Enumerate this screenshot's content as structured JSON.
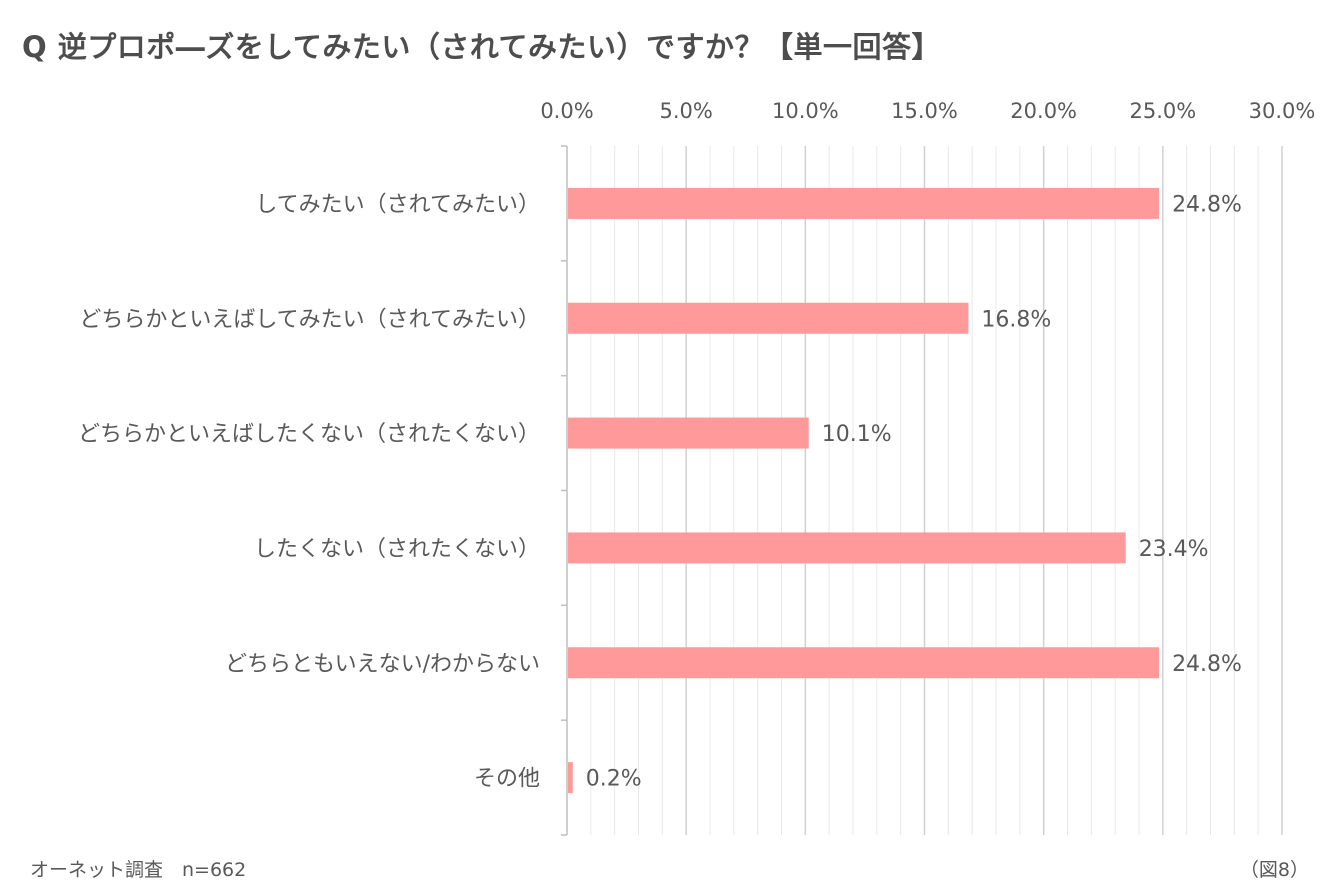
{
  "header": {
    "title": "Q 逆プロポ―ズをしてみたい（されてみたい）ですか？【単一回答】"
  },
  "footer": {
    "source": "オーネット調査　n=662",
    "figure": "（図8）"
  },
  "colors": {
    "bar": "#ff999a",
    "major_grid": "#d0d0d0",
    "minor_grid": "#e8e8e8",
    "text": "#595959"
  },
  "chart_data": {
    "type": "bar",
    "orientation": "horizontal",
    "categories": [
      "してみたい（されてみたい）",
      "どちらかといえばしてみたい（されてみたい）",
      "どちらかといえばしたくない（されたくない）",
      "したくない（されたくない）",
      "どちらともいえない/わからない",
      "その他"
    ],
    "values": [
      24.8,
      16.8,
      10.1,
      23.4,
      24.8,
      0.2
    ],
    "data_labels": [
      "24.8%",
      "16.8%",
      "10.1%",
      "23.4%",
      "24.8%",
      "0.2%"
    ],
    "xlim": [
      0,
      30
    ],
    "x_ticks": [
      0,
      5,
      10,
      15,
      20,
      25,
      30
    ],
    "x_tick_labels": [
      "0.0%",
      "5.0%",
      "10.0%",
      "15.0%",
      "20.0%",
      "25.0%",
      "30.0%"
    ],
    "x_axis_position": "top",
    "minor_grid_step": 1,
    "grid": true,
    "legend": "none"
  }
}
